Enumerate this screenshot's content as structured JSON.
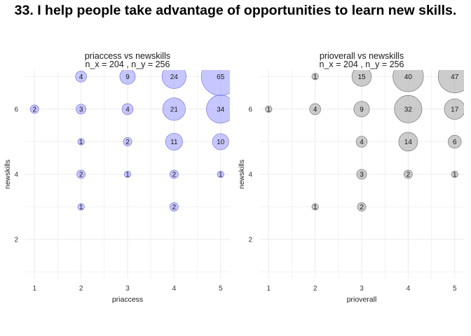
{
  "title": "33. I help people take advantage of opportunities to learn new skills.",
  "colors": {
    "panel1_fill": "#9999ff",
    "panel1_stroke": "#7777dd",
    "panel2_fill": "#aaaaaa",
    "panel2_stroke": "#777777",
    "grid": "#ebebeb"
  },
  "chart_data": [
    {
      "type": "scatter",
      "title": "priaccess vs newskills",
      "subtitle": "n_x = 204 , n_y = 256",
      "xlabel": "priaccess",
      "ylabel": "newskills",
      "xlim": [
        0.8,
        5.2
      ],
      "ylim": [
        0.8,
        7.2
      ],
      "xticks": [
        1,
        2,
        3,
        4,
        5
      ],
      "yticks": [
        2,
        4,
        6
      ],
      "points": [
        {
          "x": 2,
          "y": 7,
          "n": 4
        },
        {
          "x": 3,
          "y": 7,
          "n": 9
        },
        {
          "x": 4,
          "y": 7,
          "n": 24
        },
        {
          "x": 5,
          "y": 7,
          "n": 65
        },
        {
          "x": 1,
          "y": 6,
          "n": 2
        },
        {
          "x": 2,
          "y": 6,
          "n": 3
        },
        {
          "x": 3,
          "y": 6,
          "n": 4
        },
        {
          "x": 4,
          "y": 6,
          "n": 21
        },
        {
          "x": 5,
          "y": 6,
          "n": 34
        },
        {
          "x": 2,
          "y": 5,
          "n": 1
        },
        {
          "x": 3,
          "y": 5,
          "n": 2
        },
        {
          "x": 4,
          "y": 5,
          "n": 11
        },
        {
          "x": 5,
          "y": 5,
          "n": 10
        },
        {
          "x": 2,
          "y": 4,
          "n": 2
        },
        {
          "x": 3,
          "y": 4,
          "n": 1
        },
        {
          "x": 4,
          "y": 4,
          "n": 2
        },
        {
          "x": 5,
          "y": 4,
          "n": 1
        },
        {
          "x": 2,
          "y": 3,
          "n": 1
        },
        {
          "x": 4,
          "y": 3,
          "n": 2
        }
      ]
    },
    {
      "type": "scatter",
      "title": "prioverall vs newskills",
      "subtitle": "n_x = 204 , n_y = 256",
      "xlabel": "prioverall",
      "ylabel": "newskills",
      "xlim": [
        0.8,
        5.2
      ],
      "ylim": [
        0.8,
        7.2
      ],
      "xticks": [
        1,
        2,
        3,
        4,
        5
      ],
      "yticks": [
        2,
        4,
        6
      ],
      "points": [
        {
          "x": 2,
          "y": 7,
          "n": 1
        },
        {
          "x": 3,
          "y": 7,
          "n": 15
        },
        {
          "x": 4,
          "y": 7,
          "n": 40
        },
        {
          "x": 5,
          "y": 7,
          "n": 47
        },
        {
          "x": 1,
          "y": 6,
          "n": 1
        },
        {
          "x": 2,
          "y": 6,
          "n": 4
        },
        {
          "x": 3,
          "y": 6,
          "n": 9
        },
        {
          "x": 4,
          "y": 6,
          "n": 32
        },
        {
          "x": 5,
          "y": 6,
          "n": 17
        },
        {
          "x": 3,
          "y": 5,
          "n": 4
        },
        {
          "x": 4,
          "y": 5,
          "n": 14
        },
        {
          "x": 5,
          "y": 5,
          "n": 6
        },
        {
          "x": 3,
          "y": 4,
          "n": 3
        },
        {
          "x": 4,
          "y": 4,
          "n": 2
        },
        {
          "x": 5,
          "y": 4,
          "n": 1
        },
        {
          "x": 2,
          "y": 3,
          "n": 1
        },
        {
          "x": 3,
          "y": 3,
          "n": 2
        }
      ]
    }
  ]
}
